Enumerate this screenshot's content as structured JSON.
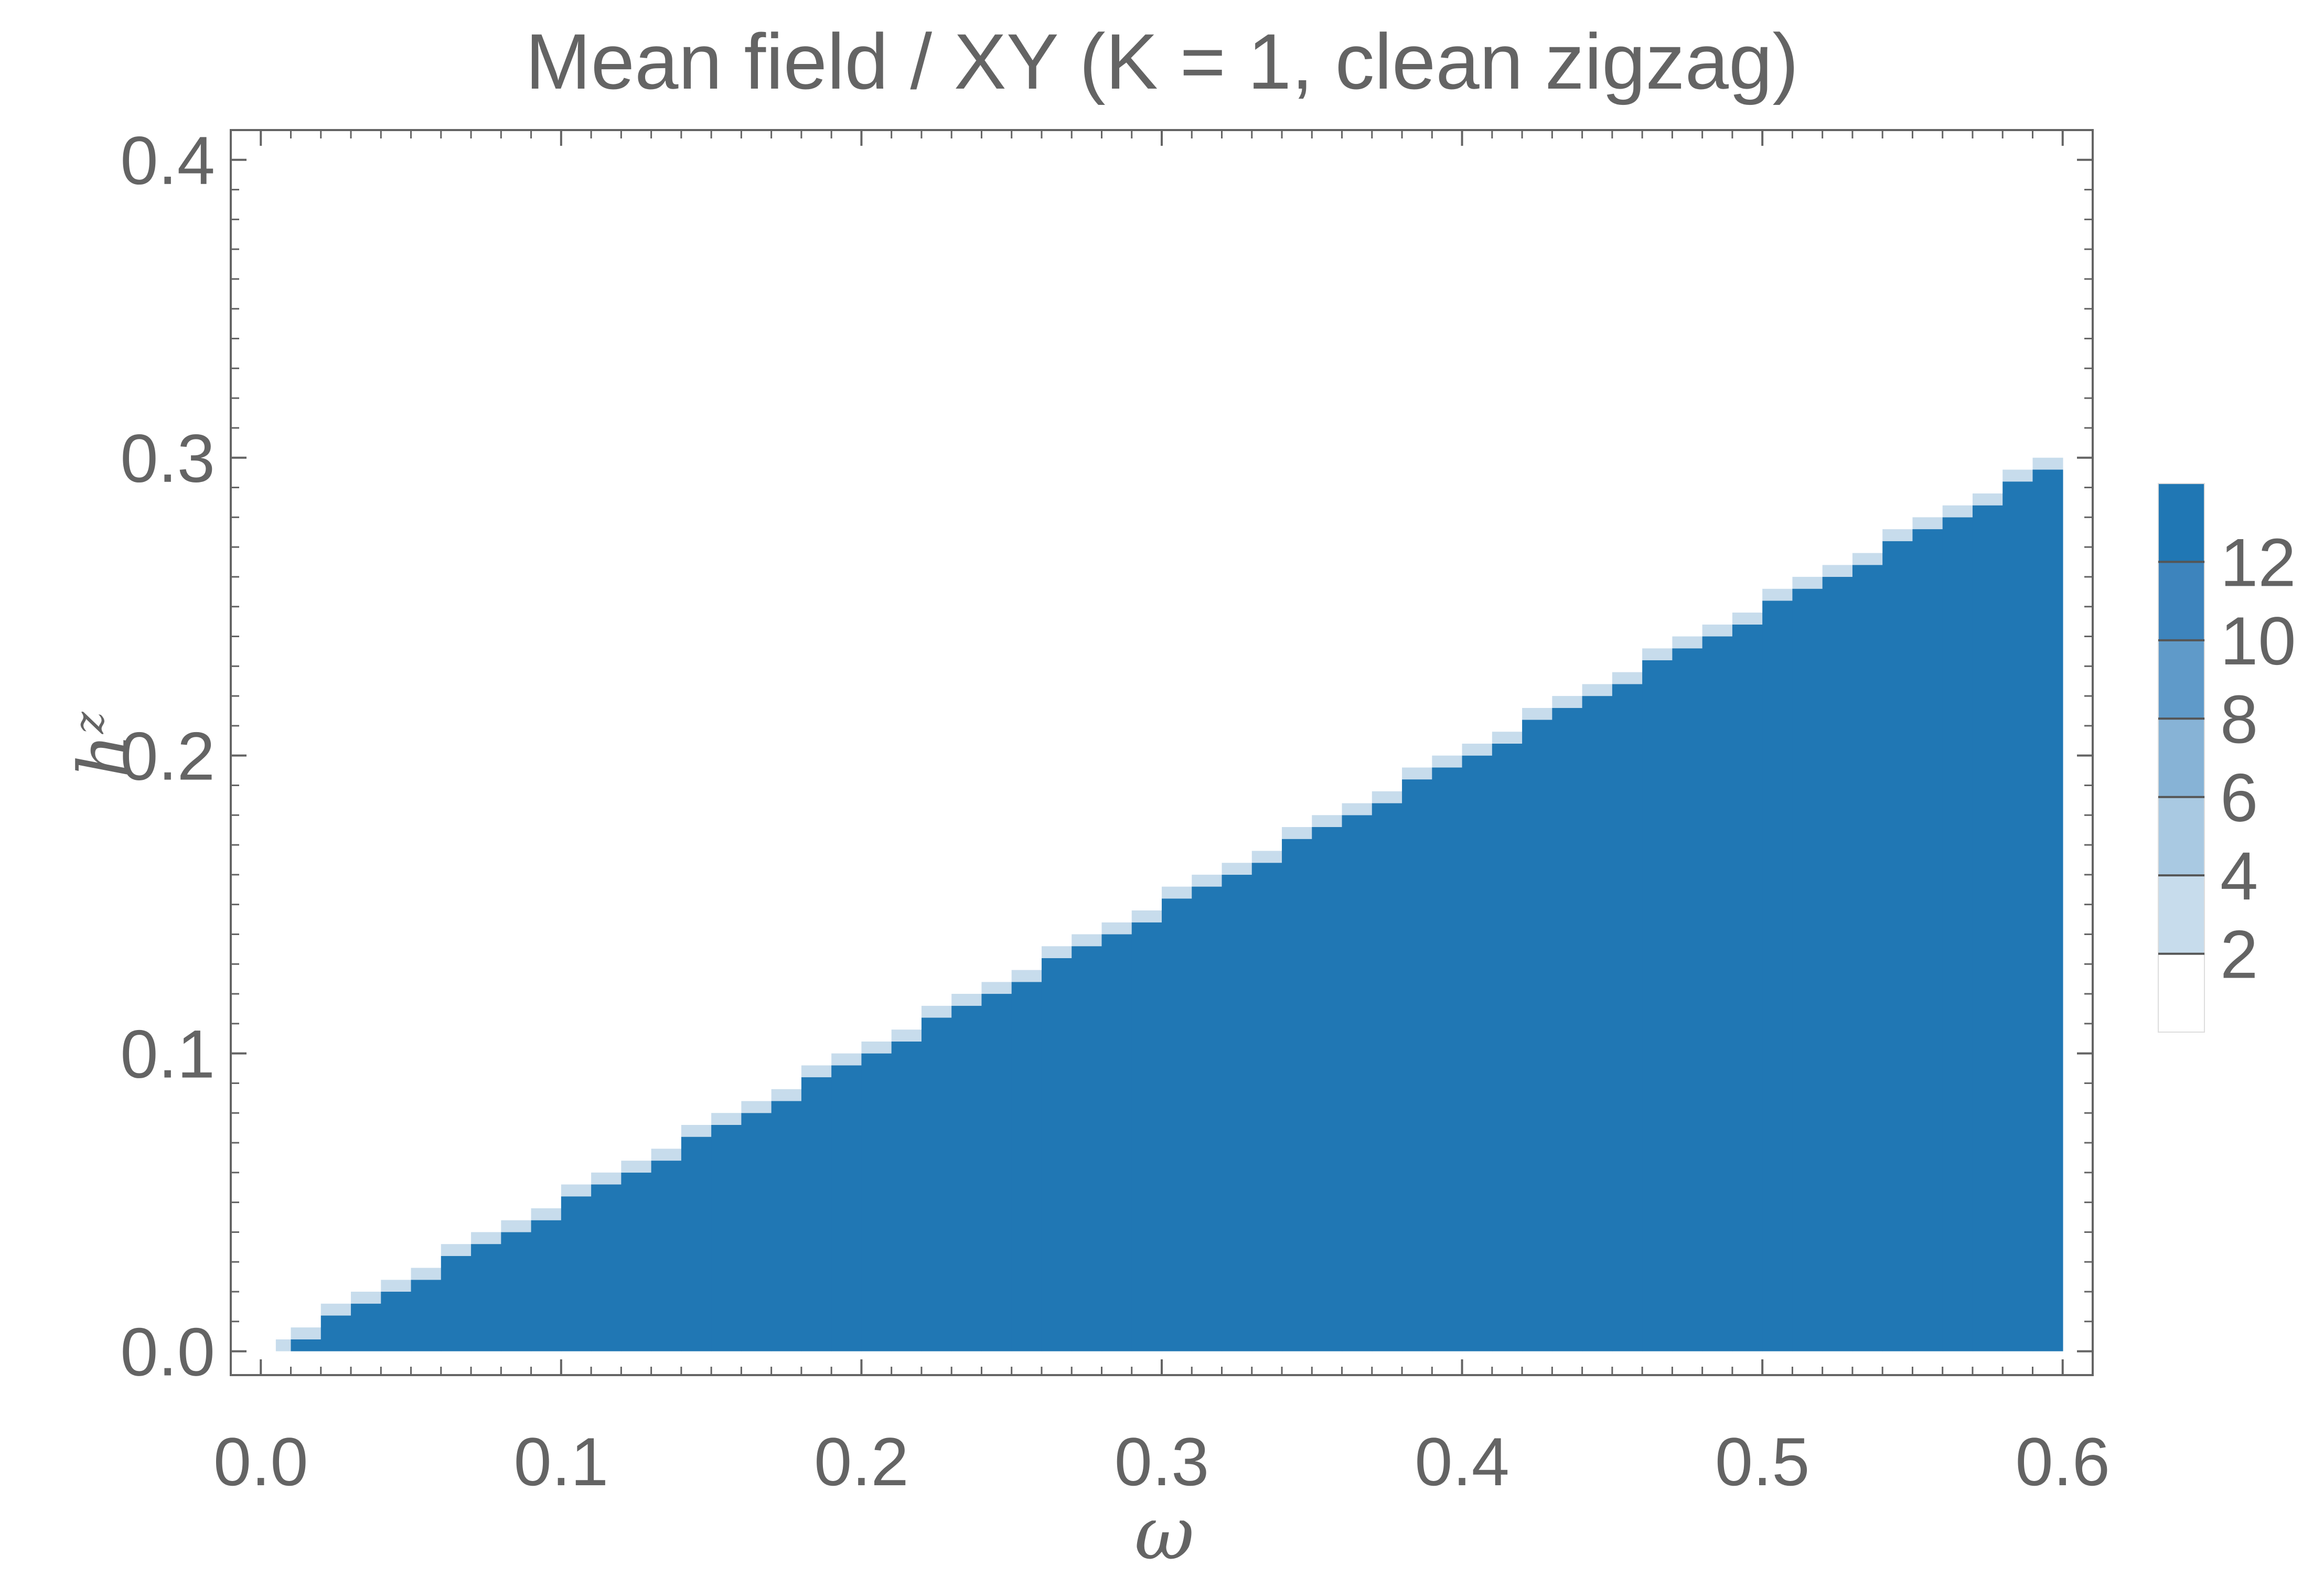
{
  "chart_data": {
    "type": "heatmap",
    "title": "Mean field / XY (K = 1, clean zigzag)",
    "xlabel": "ω",
    "ylabel": {
      "base": "h",
      "superscript": "z"
    },
    "xlim": [
      -0.01,
      0.61
    ],
    "ylim": [
      -0.008,
      0.41
    ],
    "x_ticks": [
      "0.0",
      "0.1",
      "0.2",
      "0.3",
      "0.4",
      "0.5",
      "0.6"
    ],
    "y_ticks": [
      "0.0",
      "0.1",
      "0.2",
      "0.3",
      "0.4"
    ],
    "grid": false,
    "region": {
      "description_values": "filled for 0.005 <= ω <= 0.6 and 0 <= h^z <= 0.5·ω",
      "x_start": 0.005,
      "x_end": 0.6,
      "x_step": 0.01,
      "y_step": 0.004,
      "boundary_slope": 0.5,
      "interior_value": 13,
      "edge_values": [
        3,
        1
      ]
    },
    "colorbar": {
      "ticks": [
        "2",
        "4",
        "6",
        "8",
        "10",
        "12"
      ],
      "tick_values": [
        2,
        4,
        6,
        8,
        10,
        12
      ],
      "range": [
        0,
        14
      ],
      "levels": [
        {
          "from": 0,
          "to": 2,
          "color": "#ffffff"
        },
        {
          "from": 2,
          "to": 4,
          "color": "#c7dcec"
        },
        {
          "from": 4,
          "to": 6,
          "color": "#a9c9e2"
        },
        {
          "from": 6,
          "to": 8,
          "color": "#87b3d6"
        },
        {
          "from": 8,
          "to": 10,
          "color": "#5f9ac9"
        },
        {
          "from": 10,
          "to": 12,
          "color": "#3d84bd"
        },
        {
          "from": 12,
          "to": 14,
          "color": "#2077b4"
        }
      ]
    },
    "colors": {
      "fill": "#2077b4",
      "axis": "#646464",
      "text": "#646464"
    }
  }
}
